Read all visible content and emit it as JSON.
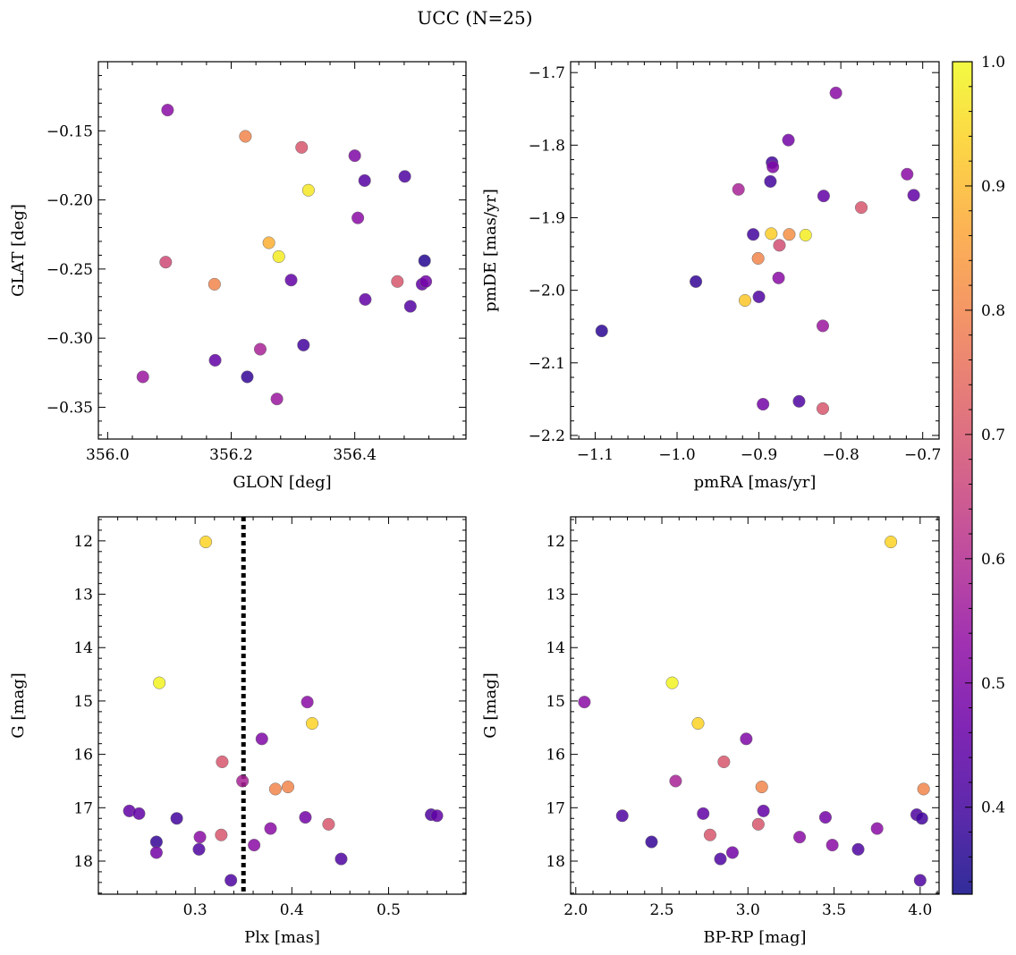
{
  "figure": {
    "title": "UCC (N=25)"
  },
  "colorbar": {
    "range": [
      0.33,
      1.0
    ],
    "ticks": [
      0.4,
      0.5,
      0.6,
      0.7,
      0.8,
      0.9,
      1.0
    ],
    "tick_labels": [
      "0.4",
      "0.5",
      "0.6",
      "0.7",
      "0.8",
      "0.9",
      "1.0"
    ],
    "colormap": "plasma",
    "alpha": 0.85
  },
  "chart_data": [
    {
      "type": "scatter",
      "xlabel": "GLON [deg]",
      "ylabel": "GLAT [deg]",
      "xlim": [
        355.985,
        356.58
      ],
      "ylim": [
        -0.373,
        -0.1
      ],
      "xticks": [
        356.0,
        356.2,
        356.4
      ],
      "xtick_labels": [
        "356.0",
        "356.2",
        "356.4"
      ],
      "yticks": [
        -0.15,
        -0.2,
        -0.25,
        -0.3,
        -0.35
      ],
      "ytick_labels": [
        "−0.15",
        "−0.20",
        "−0.25",
        "−0.30",
        "−0.35"
      ],
      "y_inverted": false,
      "points": [
        {
          "x": 356.097,
          "y": -0.135,
          "c": 0.52
        },
        {
          "x": 356.223,
          "y": -0.154,
          "c": 0.8
        },
        {
          "x": 356.314,
          "y": -0.162,
          "c": 0.7
        },
        {
          "x": 356.4,
          "y": -0.168,
          "c": 0.5
        },
        {
          "x": 356.481,
          "y": -0.183,
          "c": 0.42
        },
        {
          "x": 356.416,
          "y": -0.186,
          "c": 0.43
        },
        {
          "x": 356.325,
          "y": -0.193,
          "c": 0.97
        },
        {
          "x": 356.405,
          "y": -0.213,
          "c": 0.52
        },
        {
          "x": 356.261,
          "y": -0.231,
          "c": 0.88
        },
        {
          "x": 356.277,
          "y": -0.241,
          "c": 0.98
        },
        {
          "x": 356.513,
          "y": -0.244,
          "c": 0.36
        },
        {
          "x": 356.094,
          "y": -0.245,
          "c": 0.67
        },
        {
          "x": 356.469,
          "y": -0.259,
          "c": 0.7
        },
        {
          "x": 356.509,
          "y": -0.261,
          "c": 0.45
        },
        {
          "x": 356.515,
          "y": -0.259,
          "c": 0.48
        },
        {
          "x": 356.297,
          "y": -0.258,
          "c": 0.45
        },
        {
          "x": 356.173,
          "y": -0.261,
          "c": 0.8
        },
        {
          "x": 356.49,
          "y": -0.277,
          "c": 0.43
        },
        {
          "x": 356.417,
          "y": -0.272,
          "c": 0.45
        },
        {
          "x": 356.317,
          "y": -0.305,
          "c": 0.4
        },
        {
          "x": 356.247,
          "y": -0.308,
          "c": 0.58
        },
        {
          "x": 356.174,
          "y": -0.316,
          "c": 0.45
        },
        {
          "x": 356.226,
          "y": -0.328,
          "c": 0.38
        },
        {
          "x": 356.274,
          "y": -0.344,
          "c": 0.55
        },
        {
          "x": 356.057,
          "y": -0.328,
          "c": 0.55
        }
      ]
    },
    {
      "type": "scatter",
      "xlabel": "pmRA [mas/yr]",
      "ylabel": "pmDE [mas/yr]",
      "xlim": [
        -1.13,
        -0.68
      ],
      "ylim": [
        -2.205,
        -1.685
      ],
      "xticks": [
        -1.1,
        -1.0,
        -0.9,
        -0.8,
        -0.7
      ],
      "xtick_labels": [
        "−1.1",
        "−1.0",
        "−0.9",
        "−0.8",
        "−0.7"
      ],
      "yticks": [
        -1.7,
        -1.8,
        -1.9,
        -2.0,
        -2.1,
        -2.2
      ],
      "ytick_labels": [
        "−1.7",
        "−1.8",
        "−1.9",
        "−2.0",
        "−2.1",
        "−2.2"
      ],
      "y_inverted": false,
      "points": [
        {
          "x": -0.806,
          "y": -1.728,
          "c": 0.52
        },
        {
          "x": -0.864,
          "y": -1.793,
          "c": 0.48
        },
        {
          "x": -0.884,
          "y": -1.824,
          "c": 0.4
        },
        {
          "x": -0.883,
          "y": -1.83,
          "c": 0.5
        },
        {
          "x": -0.719,
          "y": -1.84,
          "c": 0.52
        },
        {
          "x": -0.886,
          "y": -1.85,
          "c": 0.4
        },
        {
          "x": -0.925,
          "y": -1.861,
          "c": 0.58
        },
        {
          "x": -0.711,
          "y": -1.869,
          "c": 0.45
        },
        {
          "x": -0.821,
          "y": -1.87,
          "c": 0.45
        },
        {
          "x": -0.775,
          "y": -1.886,
          "c": 0.7
        },
        {
          "x": -0.907,
          "y": -1.923,
          "c": 0.4
        },
        {
          "x": -0.885,
          "y": -1.922,
          "c": 0.93
        },
        {
          "x": -0.863,
          "y": -1.923,
          "c": 0.82
        },
        {
          "x": -0.843,
          "y": -1.924,
          "c": 0.98
        },
        {
          "x": -0.875,
          "y": -1.938,
          "c": 0.68
        },
        {
          "x": -0.901,
          "y": -1.956,
          "c": 0.8
        },
        {
          "x": -0.876,
          "y": -1.983,
          "c": 0.52
        },
        {
          "x": -0.977,
          "y": -1.988,
          "c": 0.38
        },
        {
          "x": -0.9,
          "y": -2.009,
          "c": 0.42
        },
        {
          "x": -0.917,
          "y": -2.014,
          "c": 0.92
        },
        {
          "x": -0.822,
          "y": -2.049,
          "c": 0.55
        },
        {
          "x": -1.092,
          "y": -2.056,
          "c": 0.37
        },
        {
          "x": -0.851,
          "y": -2.153,
          "c": 0.42
        },
        {
          "x": -0.895,
          "y": -2.157,
          "c": 0.48
        },
        {
          "x": -0.822,
          "y": -2.163,
          "c": 0.7
        }
      ]
    },
    {
      "type": "scatter",
      "xlabel": "Plx [mas]",
      "ylabel": "G [mag]",
      "xlim": [
        0.2,
        0.58
      ],
      "ylim": [
        11.55,
        18.62
      ],
      "xticks": [
        0.3,
        0.4,
        0.5
      ],
      "xtick_labels": [
        "0.3",
        "0.4",
        "0.5"
      ],
      "yticks": [
        12,
        13,
        14,
        15,
        16,
        17,
        18
      ],
      "ytick_labels": [
        "12",
        "13",
        "14",
        "15",
        "16",
        "17",
        "18"
      ],
      "y_inverted": true,
      "vline": {
        "x": 0.35,
        "style": "dotted"
      },
      "points": [
        {
          "x": 0.311,
          "y": 12.02,
          "c": 0.94
        },
        {
          "x": 0.263,
          "y": 14.66,
          "c": 0.99
        },
        {
          "x": 0.416,
          "y": 15.02,
          "c": 0.52
        },
        {
          "x": 0.421,
          "y": 15.42,
          "c": 0.94
        },
        {
          "x": 0.369,
          "y": 15.71,
          "c": 0.5
        },
        {
          "x": 0.328,
          "y": 16.14,
          "c": 0.7
        },
        {
          "x": 0.349,
          "y": 16.5,
          "c": 0.58
        },
        {
          "x": 0.383,
          "y": 16.65,
          "c": 0.8
        },
        {
          "x": 0.396,
          "y": 16.61,
          "c": 0.8
        },
        {
          "x": 0.232,
          "y": 17.06,
          "c": 0.45
        },
        {
          "x": 0.242,
          "y": 17.11,
          "c": 0.45
        },
        {
          "x": 0.281,
          "y": 17.2,
          "c": 0.4
        },
        {
          "x": 0.414,
          "y": 17.18,
          "c": 0.48
        },
        {
          "x": 0.544,
          "y": 17.13,
          "c": 0.42
        },
        {
          "x": 0.55,
          "y": 17.15,
          "c": 0.45
        },
        {
          "x": 0.438,
          "y": 17.31,
          "c": 0.7
        },
        {
          "x": 0.378,
          "y": 17.39,
          "c": 0.52
        },
        {
          "x": 0.327,
          "y": 17.51,
          "c": 0.7
        },
        {
          "x": 0.305,
          "y": 17.55,
          "c": 0.52
        },
        {
          "x": 0.26,
          "y": 17.64,
          "c": 0.38
        },
        {
          "x": 0.361,
          "y": 17.7,
          "c": 0.52
        },
        {
          "x": 0.304,
          "y": 17.78,
          "c": 0.42
        },
        {
          "x": 0.26,
          "y": 17.84,
          "c": 0.48
        },
        {
          "x": 0.451,
          "y": 17.96,
          "c": 0.42
        },
        {
          "x": 0.337,
          "y": 18.36,
          "c": 0.42
        }
      ]
    },
    {
      "type": "scatter",
      "xlabel": "BP-RP [mag]",
      "ylabel": "G [mag]",
      "xlim": [
        1.97,
        4.11
      ],
      "ylim": [
        11.55,
        18.62
      ],
      "xticks": [
        2.0,
        2.5,
        3.0,
        3.5,
        4.0
      ],
      "xtick_labels": [
        "2.0",
        "2.5",
        "3.0",
        "3.5",
        "4.0"
      ],
      "yticks": [
        12,
        13,
        14,
        15,
        16,
        17,
        18
      ],
      "ytick_labels": [
        "12",
        "13",
        "14",
        "15",
        "16",
        "17",
        "18"
      ],
      "y_inverted": true,
      "points": [
        {
          "x": 3.83,
          "y": 12.02,
          "c": 0.94
        },
        {
          "x": 2.56,
          "y": 14.66,
          "c": 0.99
        },
        {
          "x": 2.05,
          "y": 15.02,
          "c": 0.52
        },
        {
          "x": 2.71,
          "y": 15.42,
          "c": 0.94
        },
        {
          "x": 2.99,
          "y": 15.71,
          "c": 0.5
        },
        {
          "x": 2.86,
          "y": 16.14,
          "c": 0.7
        },
        {
          "x": 2.58,
          "y": 16.5,
          "c": 0.58
        },
        {
          "x": 3.08,
          "y": 16.61,
          "c": 0.8
        },
        {
          "x": 4.02,
          "y": 16.65,
          "c": 0.8
        },
        {
          "x": 3.09,
          "y": 17.06,
          "c": 0.45
        },
        {
          "x": 2.74,
          "y": 17.11,
          "c": 0.45
        },
        {
          "x": 2.27,
          "y": 17.15,
          "c": 0.42
        },
        {
          "x": 3.45,
          "y": 17.18,
          "c": 0.48
        },
        {
          "x": 3.98,
          "y": 17.13,
          "c": 0.42
        },
        {
          "x": 4.01,
          "y": 17.2,
          "c": 0.4
        },
        {
          "x": 3.06,
          "y": 17.31,
          "c": 0.7
        },
        {
          "x": 3.75,
          "y": 17.39,
          "c": 0.52
        },
        {
          "x": 2.78,
          "y": 17.51,
          "c": 0.7
        },
        {
          "x": 3.3,
          "y": 17.55,
          "c": 0.52
        },
        {
          "x": 2.44,
          "y": 17.64,
          "c": 0.38
        },
        {
          "x": 3.49,
          "y": 17.7,
          "c": 0.52
        },
        {
          "x": 3.64,
          "y": 17.78,
          "c": 0.42
        },
        {
          "x": 2.91,
          "y": 17.84,
          "c": 0.48
        },
        {
          "x": 2.84,
          "y": 17.96,
          "c": 0.42
        },
        {
          "x": 4.0,
          "y": 18.36,
          "c": 0.42
        }
      ]
    }
  ]
}
